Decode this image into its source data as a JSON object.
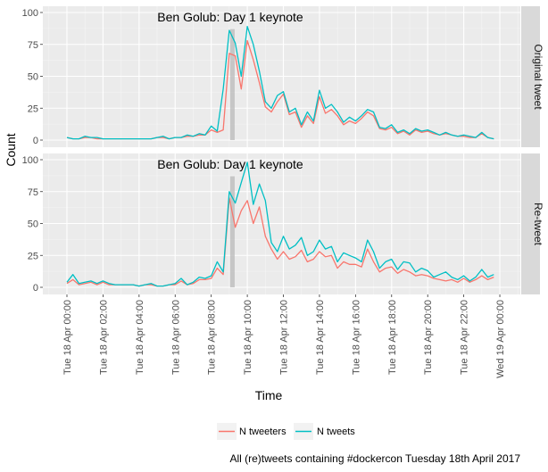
{
  "chart_data": {
    "type": "line",
    "caption": "All (re)tweets containing #dockercon Tuesday 18th April 2017",
    "xlabel": "Time",
    "ylabel": "Count",
    "ylim": [
      0,
      100
    ],
    "yticks": [
      "0",
      "25",
      "50",
      "75",
      "100"
    ],
    "x_unit": "hours since Tue 18 Apr 00:00",
    "x_step_hours": 0.3333,
    "xticks": [
      "Tue 18 Apr 00:00",
      "Tue 18 Apr 02:00",
      "Tue 18 Apr 04:00",
      "Tue 18 Apr 06:00",
      "Tue 18 Apr 08:00",
      "Tue 18 Apr 10:00",
      "Tue 18 Apr 12:00",
      "Tue 18 Apr 14:00",
      "Tue 18 Apr 16:00",
      "Tue 18 Apr 18:00",
      "Tue 18 Apr 20:00",
      "Tue 18 Apr 22:00",
      "Wed 19 Apr 00:00"
    ],
    "annotation": {
      "text": "Ben Golub: Day 1 keynote",
      "start_hour": 9.05,
      "end_hour": 9.3
    },
    "legend": {
      "placement": "bottom",
      "entries": [
        {
          "name": "N tweeters",
          "color": "#F8766D"
        },
        {
          "name": "N tweets",
          "color": "#00BFC4"
        }
      ]
    },
    "panels": [
      {
        "strip": "Original tweet",
        "series": [
          {
            "name": "N tweeters",
            "color": "#F8766D",
            "values": [
              2,
              1,
              1,
              2,
              2,
              1,
              1,
              1,
              1,
              1,
              1,
              1,
              1,
              1,
              1,
              2,
              2,
              1,
              2,
              2,
              3,
              3,
              4,
              4,
              8,
              6,
              8,
              68,
              66,
              40,
              78,
              63,
              45,
              26,
              22,
              30,
              36,
              20,
              22,
              10,
              19,
              13,
              34,
              21,
              24,
              19,
              12,
              15,
              13,
              17,
              22,
              19,
              9,
              8,
              10,
              5,
              7,
              4,
              8,
              6,
              7,
              5,
              4,
              5,
              4,
              3,
              3,
              2,
              2,
              5,
              2,
              1
            ]
          },
          {
            "name": "N tweets",
            "color": "#00BFC4",
            "values": [
              2,
              1,
              1,
              3,
              2,
              2,
              1,
              1,
              1,
              1,
              1,
              1,
              1,
              1,
              1,
              2,
              3,
              1,
              2,
              2,
              4,
              3,
              5,
              4,
              11,
              7,
              40,
              86,
              76,
              50,
              89,
              75,
              54,
              30,
              25,
              35,
              38,
              22,
              25,
              12,
              22,
              15,
              39,
              25,
              28,
              22,
              14,
              18,
              15,
              19,
              24,
              22,
              10,
              9,
              12,
              6,
              8,
              5,
              9,
              7,
              8,
              6,
              4,
              6,
              4,
              3,
              4,
              3,
              2,
              6,
              2,
              1
            ]
          }
        ]
      },
      {
        "strip": "Re-tweet",
        "series": [
          {
            "name": "N tweeters",
            "color": "#F8766D",
            "values": [
              3,
              6,
              2,
              3,
              4,
              2,
              4,
              2,
              2,
              2,
              2,
              2,
              1,
              2,
              2,
              1,
              1,
              2,
              2,
              5,
              2,
              3,
              6,
              6,
              7,
              15,
              10,
              70,
              47,
              60,
              68,
              50,
              63,
              40,
              30,
              22,
              28,
              22,
              24,
              29,
              20,
              22,
              28,
              24,
              25,
              15,
              20,
              18,
              18,
              16,
              30,
              20,
              12,
              15,
              16,
              11,
              14,
              12,
              9,
              10,
              9,
              7,
              6,
              5,
              6,
              4,
              7,
              4,
              6,
              9,
              6,
              8
            ]
          },
          {
            "name": "N tweets",
            "color": "#00BFC4",
            "values": [
              4,
              10,
              3,
              4,
              5,
              3,
              5,
              3,
              2,
              2,
              2,
              2,
              1,
              2,
              3,
              1,
              1,
              2,
              3,
              7,
              2,
              4,
              8,
              7,
              9,
              20,
              12,
              75,
              66,
              82,
              98,
              65,
              81,
              68,
              35,
              28,
              40,
              30,
              33,
              39,
              25,
              28,
              37,
              30,
              32,
              20,
              27,
              25,
              23,
              20,
              37,
              28,
              15,
              20,
              22,
              14,
              20,
              19,
              12,
              15,
              13,
              8,
              10,
              12,
              8,
              6,
              9,
              5,
              8,
              14,
              8,
              10
            ]
          }
        ]
      }
    ]
  }
}
